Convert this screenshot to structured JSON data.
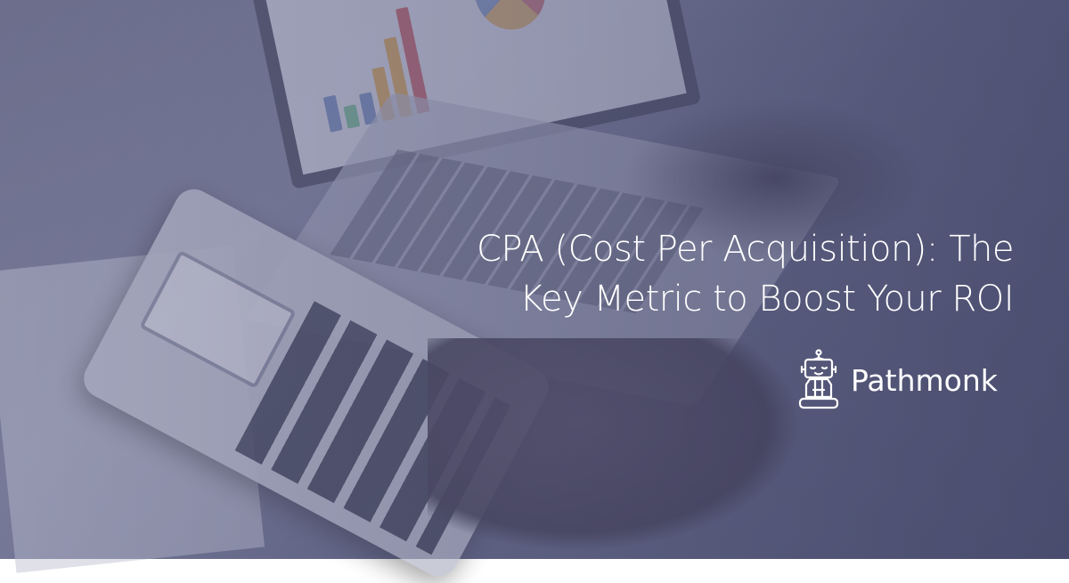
{
  "headline": {
    "line1": "CPA (Cost Per Acquisition): The",
    "line2": "Key Metric to Boost Your ROI"
  },
  "brand": {
    "name": "Pathmonk",
    "icon": "meditating-robot-logo"
  },
  "colors": {
    "overlay": "#5a5c82",
    "text": "#ffffff"
  }
}
